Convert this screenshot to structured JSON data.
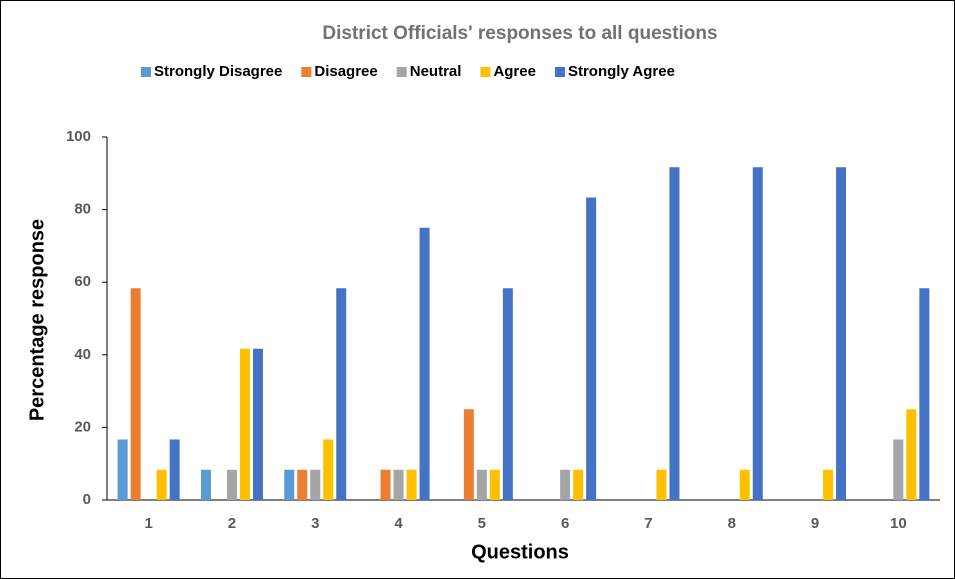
{
  "chart_data": {
    "type": "bar",
    "title": "District Officials' responses to all questions",
    "xlabel": "Questions",
    "ylabel": "Percentage response",
    "categories": [
      "1",
      "2",
      "3",
      "4",
      "5",
      "6",
      "7",
      "8",
      "9",
      "10"
    ],
    "series": [
      {
        "name": "Strongly Disagree",
        "color": "#5B9BD5",
        "values": [
          16.67,
          8.33,
          8.33,
          0,
          0,
          0,
          0,
          0,
          0,
          0
        ]
      },
      {
        "name": "Disagree",
        "color": "#ED7D31",
        "values": [
          58.33,
          0,
          8.33,
          8.33,
          25,
          0,
          0,
          0,
          0,
          0
        ]
      },
      {
        "name": "Neutral",
        "color": "#A5A5A5",
        "values": [
          0,
          8.33,
          8.33,
          8.33,
          8.33,
          8.33,
          0,
          0,
          0,
          16.67
        ]
      },
      {
        "name": "Agree",
        "color": "#FFC000",
        "values": [
          8.33,
          41.67,
          16.67,
          8.33,
          8.33,
          8.33,
          8.33,
          8.33,
          8.33,
          25
        ]
      },
      {
        "name": "Strongly Agree",
        "color": "#4472C4",
        "values": [
          16.67,
          41.67,
          58.33,
          75,
          58.33,
          83.33,
          91.67,
          91.67,
          91.67,
          58.33
        ]
      }
    ],
    "ylim": [
      0,
      100
    ],
    "yticks": [
      0,
      20,
      40,
      60,
      80,
      100
    ],
    "grid": false,
    "legend": "top"
  }
}
